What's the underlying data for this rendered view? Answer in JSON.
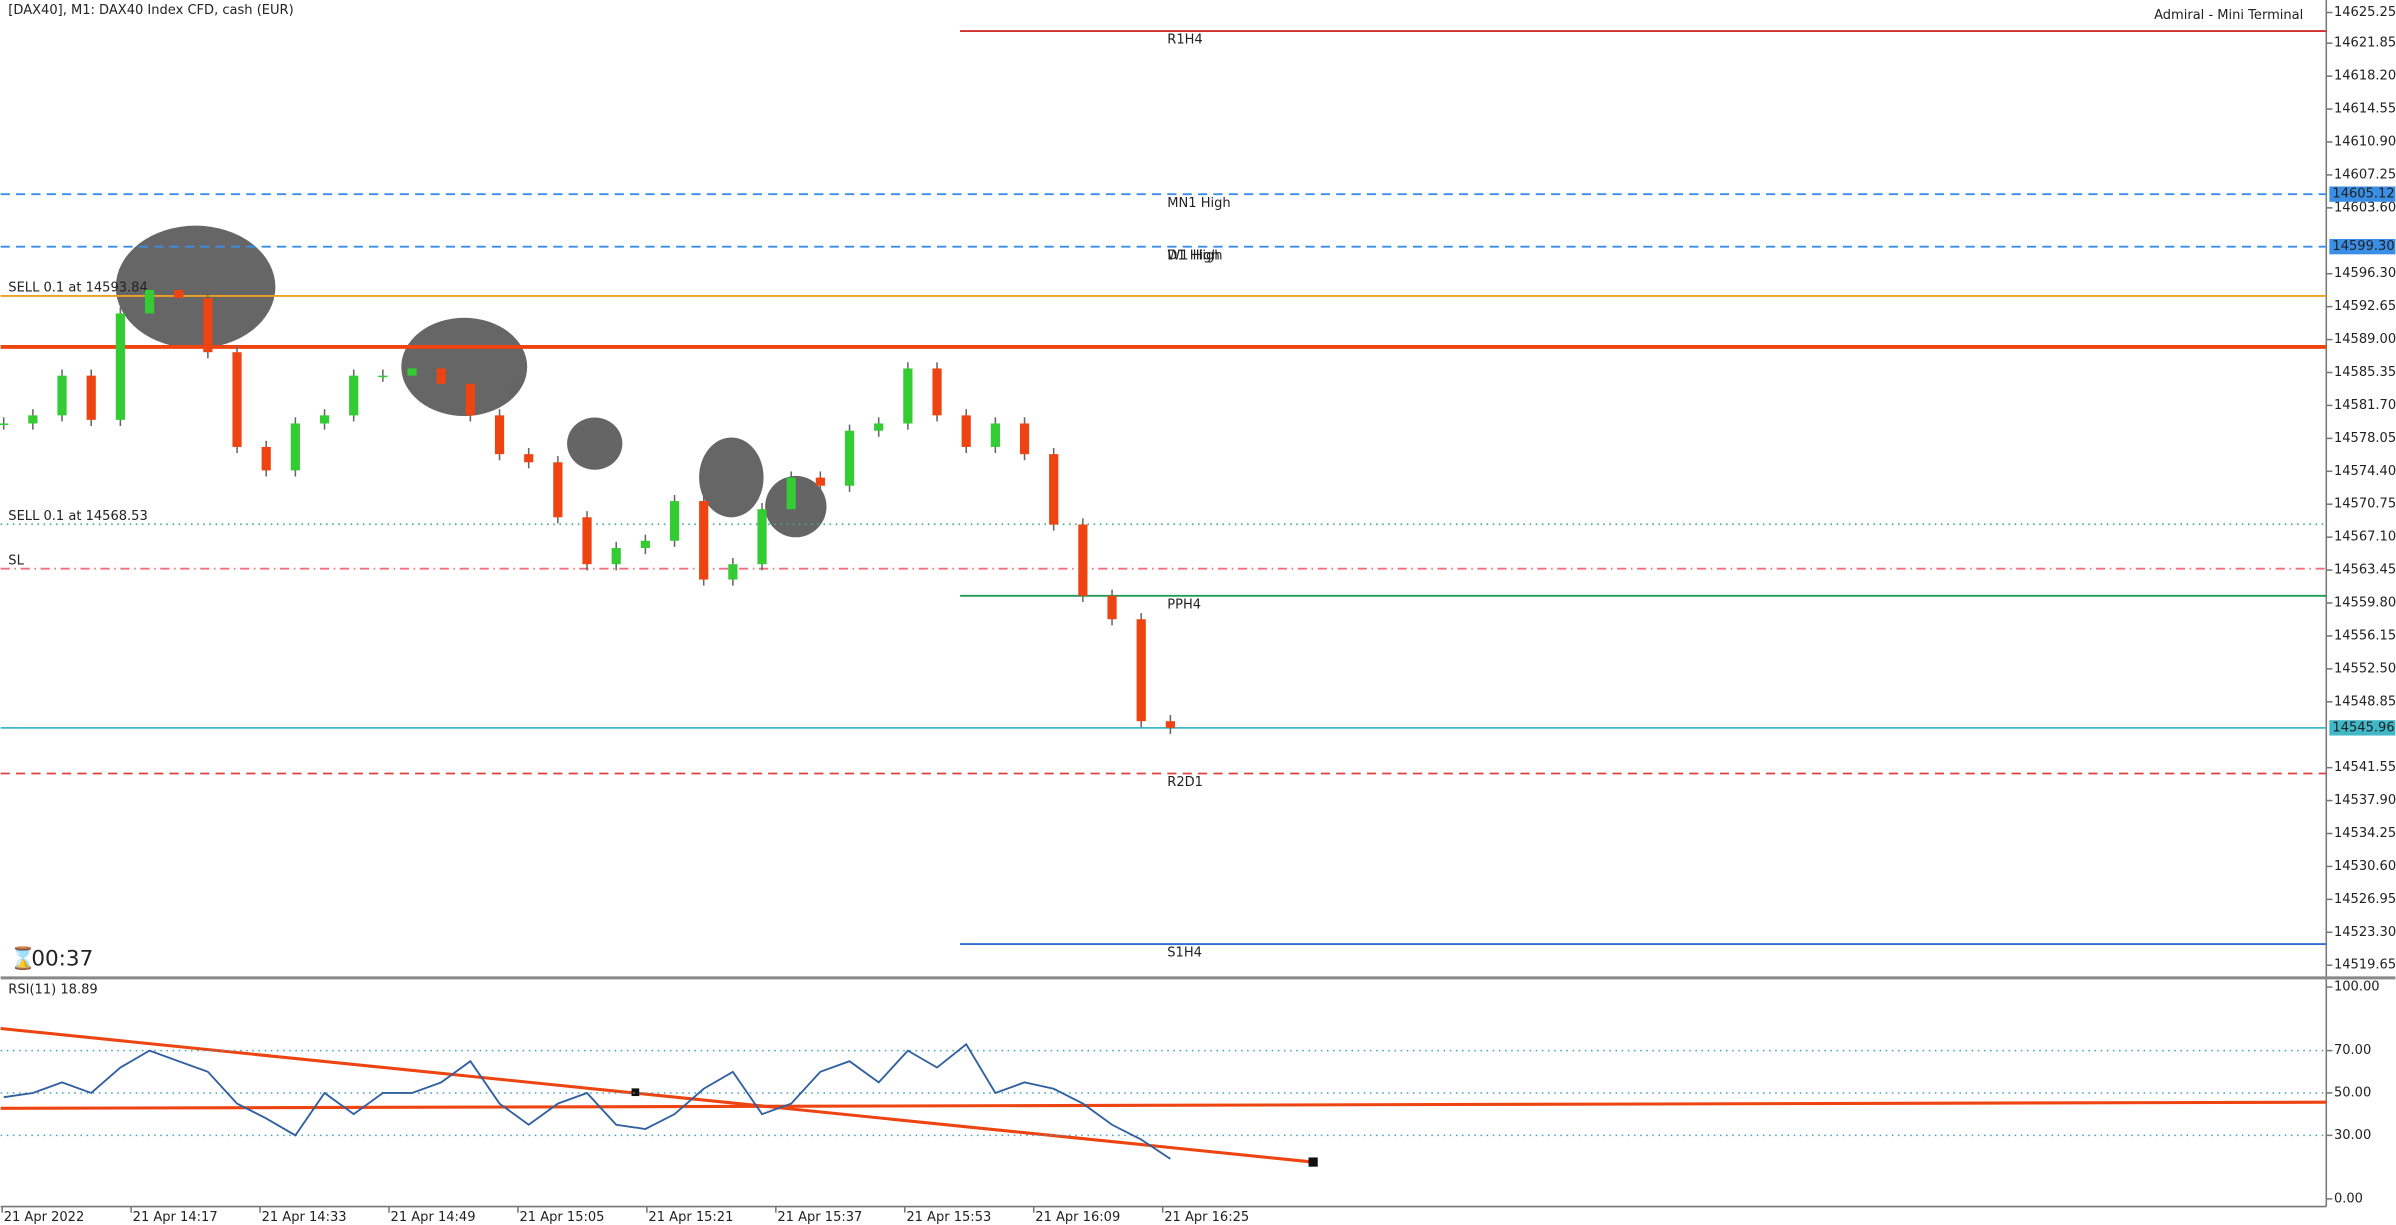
{
  "header": {
    "title": "[DAX40], M1:  DAX40 Index CFD, cash (EUR)",
    "terminal": "Admiral - Mini Terminal",
    "timer": "00:37"
  },
  "chart_data": [
    {
      "type": "candlestick",
      "values": [
        14579.7,
        14580.6,
        14585.0,
        14580.1,
        14591.9,
        14594.5,
        14593.6,
        14587.6,
        14577.1,
        14574.5,
        14579.7,
        14580.6,
        14585.0,
        14585.0,
        14585.8,
        14584.1,
        14580.6,
        14576.3,
        14575.4,
        14569.3,
        14564.1,
        14565.9,
        14566.7,
        14571.1,
        14562.4,
        14564.1,
        14570.2,
        14573.7,
        14572.8,
        14578.9,
        14579.7,
        14585.8,
        14580.6,
        14577.1,
        14579.7,
        14576.3,
        14568.5,
        14560.6,
        14558.0,
        14546.7,
        14545.96
      ],
      "ylim": [
        14518.25,
        14626.64
      ],
      "yticks": [
        14625.25,
        14621.85,
        {
          "value": 14618.2,
          "label": "14618.20"
        },
        14614.55,
        {
          "value": 14610.9,
          "label": "14610.90"
        },
        14607.25,
        {
          "value": 14603.6,
          "label": "14603.60"
        },
        {
          "value": 14596.3,
          "label": "14596.30"
        },
        14592.65,
        {
          "value": 14589.0,
          "label": "14589.00"
        },
        14585.35,
        {
          "value": 14581.7,
          "label": "14581.70"
        },
        14578.05,
        {
          "value": 14574.4,
          "label": "14574.40"
        },
        14570.75,
        {
          "value": 14567.1,
          "label": "14567.10"
        },
        14563.45,
        {
          "value": 14559.8,
          "label": "14559.80"
        },
        14556.15,
        {
          "value": 14552.5,
          "label": "14552.50"
        },
        14548.85,
        14541.55,
        {
          "value": 14537.9,
          "label": "14537.90"
        },
        14534.25,
        {
          "value": 14530.6,
          "label": "14530.60"
        },
        14526.95,
        {
          "value": 14523.3,
          "label": "14523.30"
        },
        14519.65
      ],
      "levels": [
        {
          "name": "R1H4",
          "value": 14623.2,
          "color": "#d03030",
          "style": "solid",
          "from_mid": true
        },
        {
          "name": "MN1 High",
          "value": 14605.12,
          "color": "#3a8ee6",
          "style": "dash",
          "price_label": "14605.12"
        },
        {
          "name": "W1 High",
          "value": 14599.3,
          "color": "#3a8ee6",
          "style": "dash",
          "price_label": "14599.30"
        },
        {
          "name": "D1 High",
          "value": 14599.3,
          "color": "#3a8ee6",
          "style": "none"
        },
        {
          "name": "SELL 0.1 at 14593.84",
          "value": 14593.84,
          "color": "#f0a020",
          "style": "solid",
          "left": true
        },
        {
          "name": "SELL 0.1 at 14568.53",
          "value": 14568.53,
          "color": "#44aa88",
          "style": "dot",
          "left": true
        },
        {
          "name": "SL",
          "value": 14563.6,
          "color": "#f07080",
          "style": "dashdot",
          "left": true
        },
        {
          "name": "PPH4",
          "value": 14560.6,
          "color": "#229955",
          "style": "solid",
          "from_mid": true
        },
        {
          "name": "14545.96",
          "value": 14545.96,
          "color": "#40b8c8",
          "style": "solid",
          "price_label": "14545.96",
          "nolabel": true
        },
        {
          "name": "R2D1",
          "value": 14540.9,
          "color": "#e04040",
          "style": "dash"
        },
        {
          "name": "S1H4",
          "value": 14522.0,
          "color": "#3070d0",
          "style": "solid",
          "from_mid": true
        }
      ]
    },
    {
      "type": "line",
      "title": "RSI(11) 18.89",
      "color": "#3060a0",
      "values": [
        48,
        50,
        55,
        50,
        62,
        70,
        65,
        60,
        45,
        38,
        30,
        50,
        40,
        50,
        50,
        55,
        65,
        45,
        35,
        45,
        50,
        35,
        33,
        40,
        52,
        60,
        40,
        45,
        60,
        65,
        55,
        70,
        62,
        73,
        50,
        55,
        52,
        45,
        35,
        28,
        18.89
      ],
      "ylim": [
        0,
        100
      ],
      "yticks": [
        {
          "value": 100,
          "label": "100.00"
        },
        {
          "value": 70,
          "label": "70.00"
        },
        {
          "value": 50,
          "label": "50.00"
        },
        {
          "value": 30,
          "label": "30.00"
        },
        {
          "value": 0,
          "label": "0.00"
        }
      ],
      "x_labels": [
        "21 Apr 2022",
        "21 Apr 14:17",
        "21 Apr 14:33",
        "21 Apr 14:49",
        "21 Apr 15:05",
        "21 Apr 15:21",
        "21 Apr 15:37",
        "21 Apr 15:53",
        "21 Apr 16:09",
        "21 Apr 16:25"
      ]
    }
  ]
}
